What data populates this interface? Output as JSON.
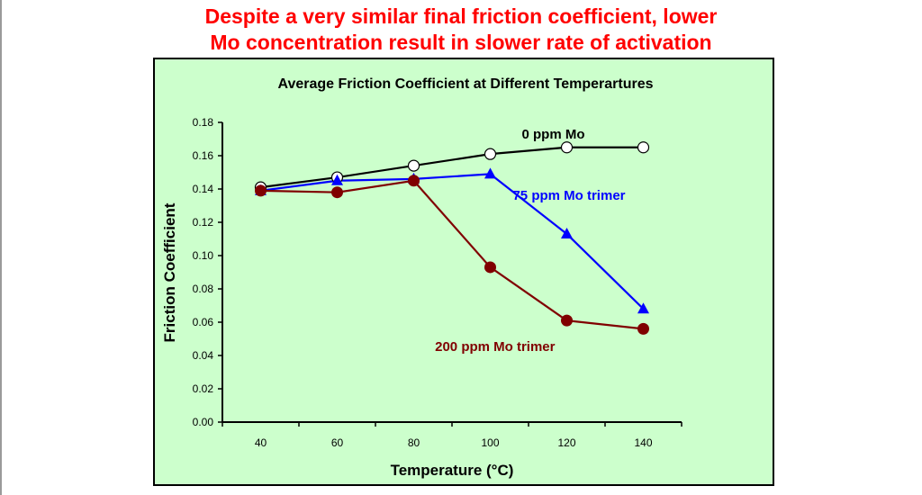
{
  "slide": {
    "headline_line1": "Despite a very similar final friction coefficient, lower",
    "headline_line2": "Mo concentration result in slower rate of activation",
    "headline_color": "#ff0000"
  },
  "chart_data": {
    "type": "line",
    "title": "Average Friction Coefficient at Different Temperartures",
    "xlabel": "Temperature (°C)",
    "ylabel": "Friction Coefficient",
    "x": [
      40,
      60,
      80,
      100,
      120,
      140
    ],
    "x_tick_labels": [
      "40",
      "60",
      "80",
      "100",
      "120",
      "140"
    ],
    "ylim": [
      0,
      0.18
    ],
    "y_ticks": [
      0,
      0.02,
      0.04,
      0.06,
      0.08,
      0.1,
      0.12,
      0.14,
      0.16,
      0.18
    ],
    "y_tick_labels": [
      "0.00",
      "0.02",
      "0.04",
      "0.06",
      "0.08",
      "0.10",
      "0.12",
      "0.14",
      "0.16",
      "0.18"
    ],
    "background": "#ccffcc",
    "grid": false,
    "legend": "inline labels",
    "series": [
      {
        "name": "0 ppm Mo",
        "values": [
          0.141,
          0.147,
          0.154,
          0.161,
          0.165,
          0.165
        ],
        "color": "#000000",
        "marker": "open-circle"
      },
      {
        "name": "75 ppm Mo trimer",
        "values": [
          0.139,
          0.145,
          0.146,
          0.149,
          0.113,
          0.068
        ],
        "color": "#0000ff",
        "marker": "filled-triangle"
      },
      {
        "name": "200 ppm Mo trimer",
        "values": [
          0.139,
          0.138,
          0.145,
          0.093,
          0.061,
          0.056
        ],
        "color": "#800000",
        "marker": "filled-circle"
      }
    ]
  }
}
